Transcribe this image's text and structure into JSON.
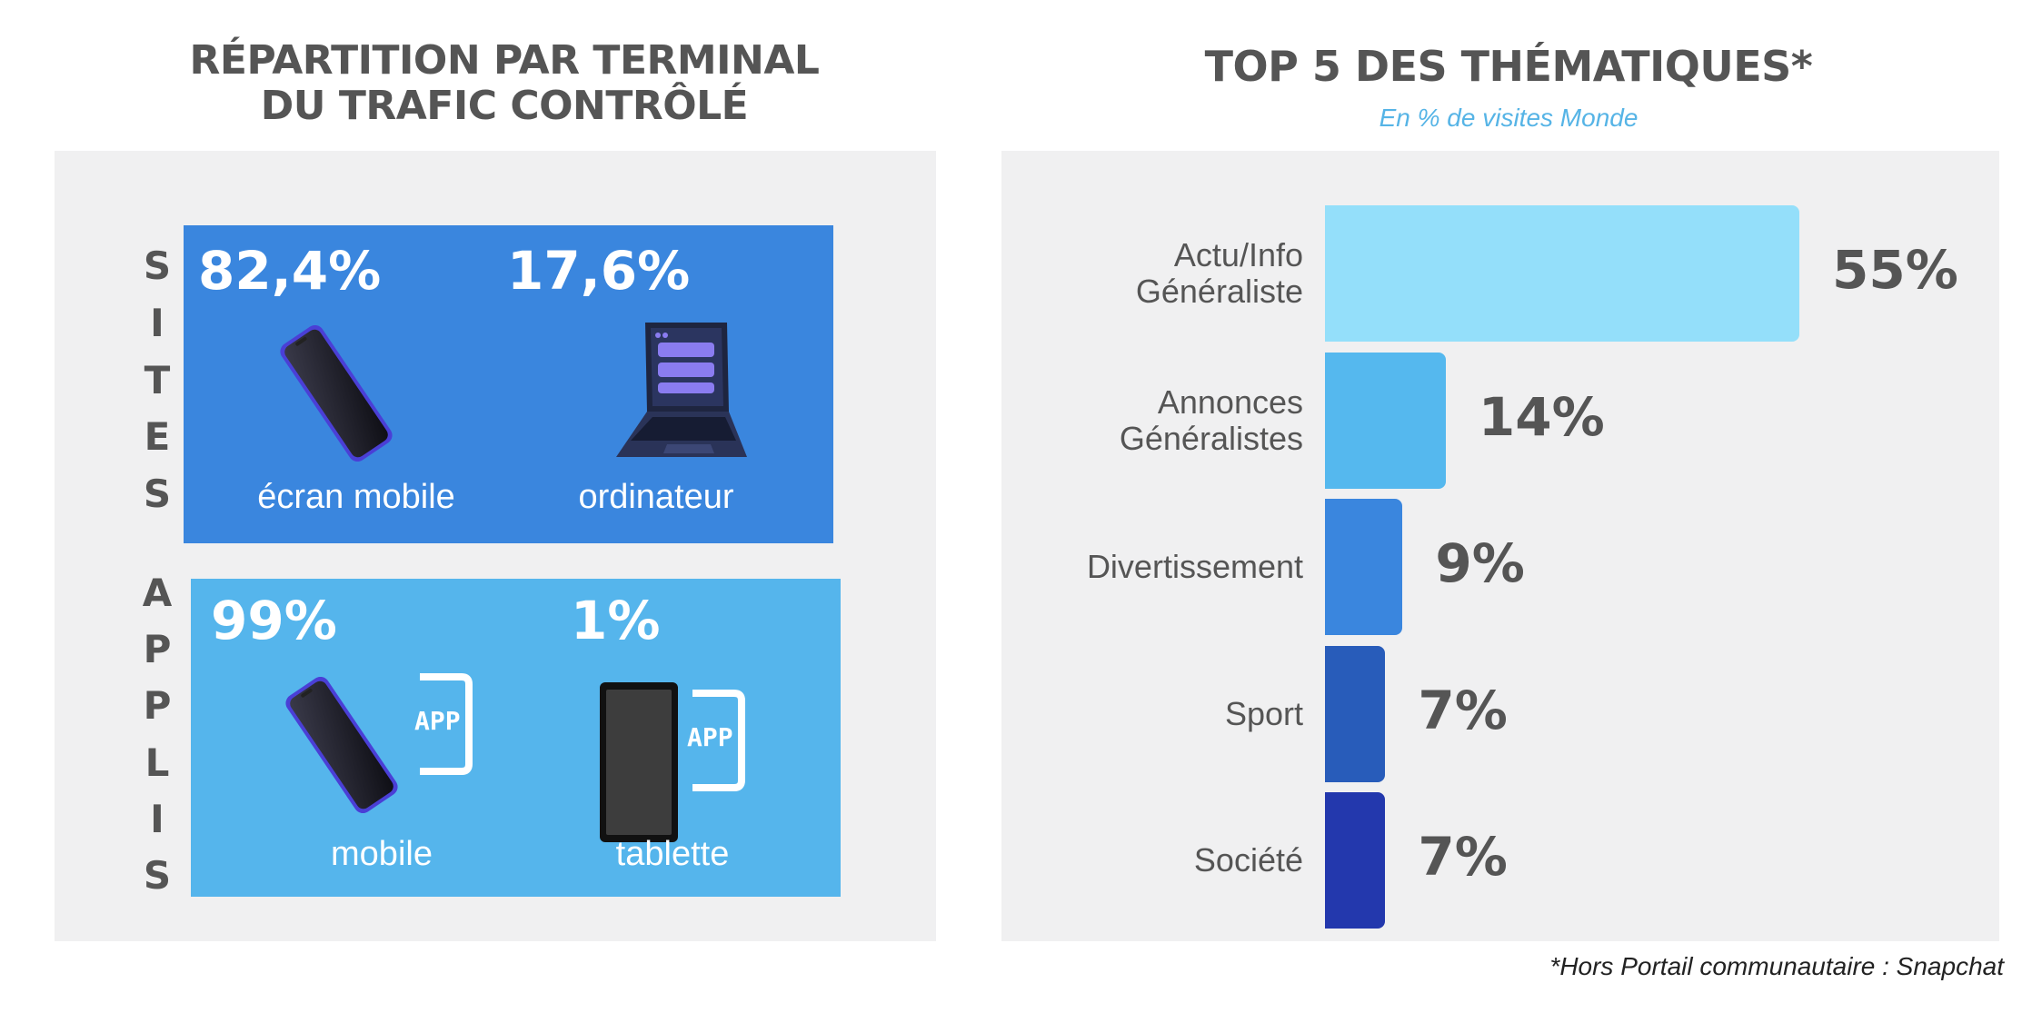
{
  "left": {
    "title_line1": "RÉPARTITION PAR TERMINAL",
    "title_line2": "DU TRAFIC CONTRÔLÉ",
    "sites_letters": [
      "S",
      "I",
      "T",
      "E",
      "S"
    ],
    "applis_letters": [
      "A",
      "P",
      "P",
      "L",
      "I",
      "S"
    ],
    "sites": [
      {
        "pct": "82,4%",
        "label": "écran mobile",
        "icon": "smartphone-icon"
      },
      {
        "pct": "17,6%",
        "label": "ordinateur",
        "icon": "laptop-icon"
      }
    ],
    "applis": [
      {
        "pct": "99%",
        "label": "mobile",
        "icon": "smartphone-icon",
        "badge": "APP"
      },
      {
        "pct": "1%",
        "label": "tablette",
        "icon": "tablet-icon",
        "badge": "APP"
      }
    ]
  },
  "right": {
    "title": "TOP 5 DES THÉMATIQUES*",
    "subtitle": "En % de visites Monde",
    "footnote": "*Hors Portail communautaire : Snapchat"
  },
  "chart_data": {
    "type": "bar",
    "orientation": "horizontal",
    "title": "TOP 5 DES THÉMATIQUES*",
    "subtitle": "En % de visites Monde",
    "categories": [
      [
        "Actu/Info",
        "Généraliste"
      ],
      [
        "Annonces",
        "Généralistes"
      ],
      [
        "Divertissement"
      ],
      [
        "Sport"
      ],
      [
        "Société"
      ]
    ],
    "values": [
      55,
      14,
      9,
      7,
      7
    ],
    "value_labels": [
      "55%",
      "14%",
      "9%",
      "7%",
      "7%"
    ],
    "colors": [
      "#94dffa",
      "#55b8ee",
      "#3a86de",
      "#285cba",
      "#2338ad"
    ],
    "xlim": [
      0,
      55
    ]
  }
}
